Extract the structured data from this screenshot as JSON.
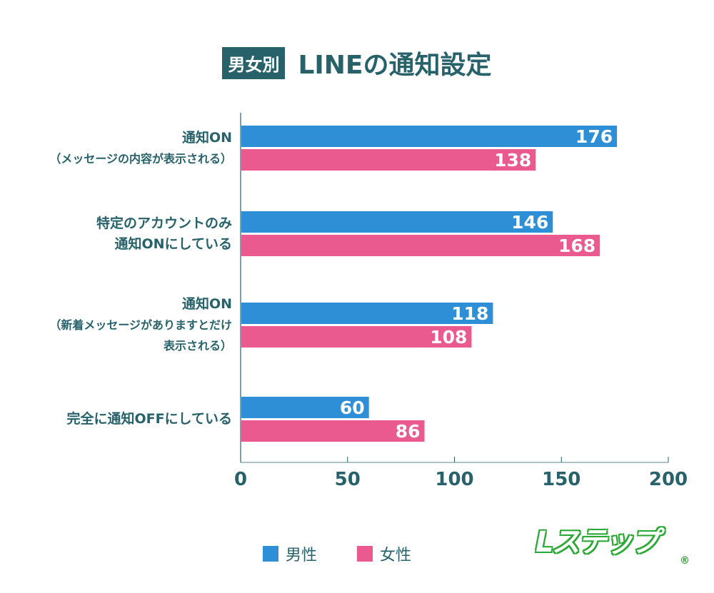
{
  "chart_data": {
    "type": "bar",
    "orientation": "horizontal",
    "title_badge": "男女別",
    "title": "LINEの通知設定",
    "categories": [
      [
        "通知ON",
        "（メッセージの内容が表示される）"
      ],
      [
        "特定のアカウントのみ",
        "通知ONにしている"
      ],
      [
        "通知ON",
        "（新着メッセージがありますとだけ",
        "表示される）"
      ],
      [
        "完全に通知OFFにしている"
      ]
    ],
    "series": [
      {
        "name": "男性",
        "color": "#2e8fd7",
        "values": [
          176,
          146,
          118,
          60
        ]
      },
      {
        "name": "女性",
        "color": "#ea5a8e",
        "values": [
          138,
          168,
          108,
          86
        ]
      }
    ],
    "xlim": [
      0,
      200
    ],
    "xticks": [
      0,
      50,
      100,
      150,
      200
    ],
    "grid": false,
    "legend": "bottom-center",
    "data_labels": true
  },
  "logo": {
    "text": "Lステップ",
    "mark": "®",
    "color": "#2aa834"
  }
}
